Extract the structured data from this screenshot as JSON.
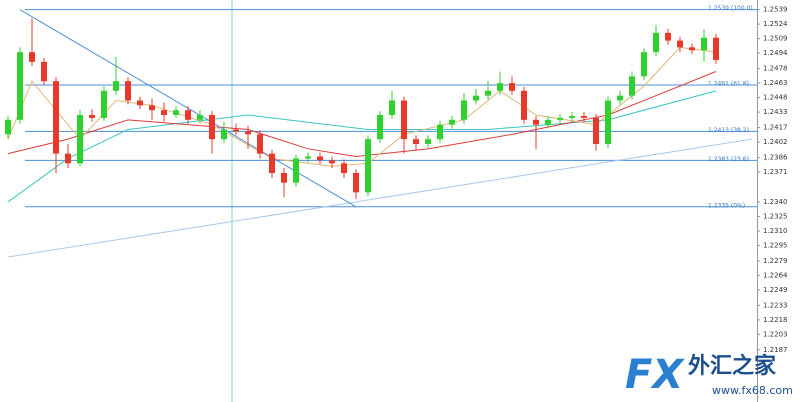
{
  "chart_data": {
    "type": "candlestick",
    "ylim": [
      1.2133,
      1.2549
    ],
    "yticks": [
      1.2539,
      1.2524,
      1.2509,
      1.2494,
      1.2478,
      1.2463,
      1.2448,
      1.2433,
      1.2417,
      1.2402,
      1.2386,
      1.2371,
      {
        "value": 1.234,
        "label": "1.2340"
      },
      1.2325,
      {
        "value": 1.231,
        "label": "1.2310"
      },
      1.2295,
      1.2279,
      1.2264,
      1.2249,
      1.2233,
      1.2218,
      1.2203,
      1.2187
    ],
    "up_color": "#2fd12f",
    "down_color": "#e8382c",
    "open": [
      1.241,
      1.2425,
      1.2495,
      1.2485,
      1.2465,
      1.239,
      1.238,
      1.243,
      1.2427,
      1.2455,
      1.2465,
      1.2445,
      1.244,
      1.2435,
      1.243,
      1.2435,
      1.2425,
      1.243,
      1.2405,
      1.2415,
      1.2413,
      1.241,
      1.239,
      1.237,
      1.236,
      1.2385,
      1.2387,
      1.2383,
      1.238,
      1.237,
      1.235,
      1.2405,
      1.243,
      1.2445,
      1.2405,
      1.24,
      1.2405,
      1.242,
      1.2425,
      1.2445,
      1.245,
      1.2455,
      1.2463,
      1.2455,
      1.2425,
      1.242,
      1.2425,
      1.2427,
      1.2429,
      1.2427,
      1.24,
      1.2445,
      1.245,
      1.247,
      1.2495,
      1.2515,
      1.2507,
      1.25,
      1.2497,
      1.251
    ],
    "high": [
      1.2429,
      1.25,
      1.253,
      1.2489,
      1.2469,
      1.24,
      1.2435,
      1.2436,
      1.246,
      1.249,
      1.2469,
      1.2449,
      1.2447,
      1.2443,
      1.2439,
      1.2439,
      1.2435,
      1.2434,
      1.2423,
      1.2421,
      1.2419,
      1.2414,
      1.2394,
      1.2375,
      1.2389,
      1.2391,
      1.2391,
      1.2387,
      1.2384,
      1.2374,
      1.2409,
      1.2434,
      1.2455,
      1.2449,
      1.2409,
      1.2409,
      1.2424,
      1.2429,
      1.2453,
      1.2457,
      1.2465,
      1.2475,
      1.247,
      1.2459,
      1.2429,
      1.2429,
      1.2431,
      1.2433,
      1.2433,
      1.2431,
      1.2449,
      1.2455,
      1.2475,
      1.2499,
      1.2523,
      1.2519,
      1.2511,
      1.2504,
      1.2519,
      1.2514
    ],
    "low": [
      1.2406,
      1.2421,
      1.2481,
      1.2461,
      1.237,
      1.2375,
      1.2377,
      1.2423,
      1.2424,
      1.2451,
      1.2441,
      1.2436,
      1.2425,
      1.2423,
      1.2427,
      1.2421,
      1.2421,
      1.239,
      1.2401,
      1.2409,
      1.2395,
      1.2385,
      1.2365,
      1.2345,
      1.2356,
      1.2381,
      1.2379,
      1.2375,
      1.2365,
      1.2343,
      1.2346,
      1.2401,
      1.2426,
      1.239,
      1.2393,
      1.2396,
      1.2401,
      1.2416,
      1.2421,
      1.2441,
      1.2446,
      1.2451,
      1.2451,
      1.2421,
      1.2395,
      1.2416,
      1.2421,
      1.2423,
      1.2423,
      1.2393,
      1.2396,
      1.2441,
      1.2446,
      1.2466,
      1.2491,
      1.2503,
      1.2495,
      1.2493,
      1.2485,
      1.2483
    ],
    "close": [
      1.2425,
      1.2495,
      1.2485,
      1.2465,
      1.239,
      1.238,
      1.243,
      1.2427,
      1.2455,
      1.2465,
      1.2445,
      1.244,
      1.2435,
      1.243,
      1.2435,
      1.2425,
      1.243,
      1.2405,
      1.2415,
      1.2413,
      1.241,
      1.239,
      1.237,
      1.236,
      1.2385,
      1.2387,
      1.2383,
      1.238,
      1.237,
      1.235,
      1.2405,
      1.243,
      1.2445,
      1.2405,
      1.24,
      1.2405,
      1.242,
      1.2425,
      1.2445,
      1.245,
      1.2455,
      1.2463,
      1.2455,
      1.2425,
      1.242,
      1.2425,
      1.2427,
      1.2429,
      1.2427,
      1.24,
      1.2445,
      1.245,
      1.247,
      1.2495,
      1.2515,
      1.2507,
      1.25,
      1.2497,
      1.251,
      1.2487
    ],
    "overlays": [
      {
        "color": "#a9c9ec",
        "x": [
          0,
          62
        ],
        "values": [
          1.2283,
          1.2405
        ]
      },
      {
        "color": "#3cc4c0",
        "x": [
          0,
          5,
          10,
          20,
          30,
          40,
          50,
          59
        ],
        "values": [
          1.234,
          1.2385,
          1.2415,
          1.243,
          1.2415,
          1.2415,
          1.2425,
          1.2455
        ]
      },
      {
        "color": "#e03a3a",
        "x": [
          0,
          5,
          10,
          20,
          25,
          29,
          35,
          42,
          50,
          59
        ],
        "values": [
          1.239,
          1.2405,
          1.2425,
          1.2415,
          1.2395,
          1.2387,
          1.2395,
          1.241,
          1.243,
          1.2475
        ]
      },
      {
        "color": "#e2b777",
        "x": [
          0,
          2,
          4,
          6,
          9,
          12,
          17,
          22,
          27,
          30,
          33,
          38,
          41,
          44,
          49,
          53,
          56,
          59
        ],
        "values": [
          1.2405,
          1.2465,
          1.2435,
          1.2405,
          1.2445,
          1.244,
          1.242,
          1.2385,
          1.2377,
          1.238,
          1.241,
          1.2425,
          1.2455,
          1.243,
          1.242,
          1.246,
          1.25,
          1.2495
        ]
      }
    ],
    "trendline": {
      "color": "#4a8fd8",
      "x": [
        1,
        29
      ],
      "values": [
        1.2539,
        1.2335
      ]
    },
    "fib_levels": [
      {
        "value": 1.2539,
        "label": "1.2539 (100.0)"
      },
      {
        "value": 1.2461,
        "label": "1.2461 (61.8)"
      },
      {
        "value": 1.2413,
        "label": "1.2413 (38.2)"
      },
      {
        "value": 1.2383,
        "label": "1.2383 (23.6)"
      },
      {
        "value": 1.2335,
        "label": "1.2335 (0%)"
      }
    ],
    "fib_color": "#4a8fd8",
    "watermark": {
      "brand": "FX",
      "name": "外汇之家",
      "url": "www.fx68.com"
    }
  }
}
